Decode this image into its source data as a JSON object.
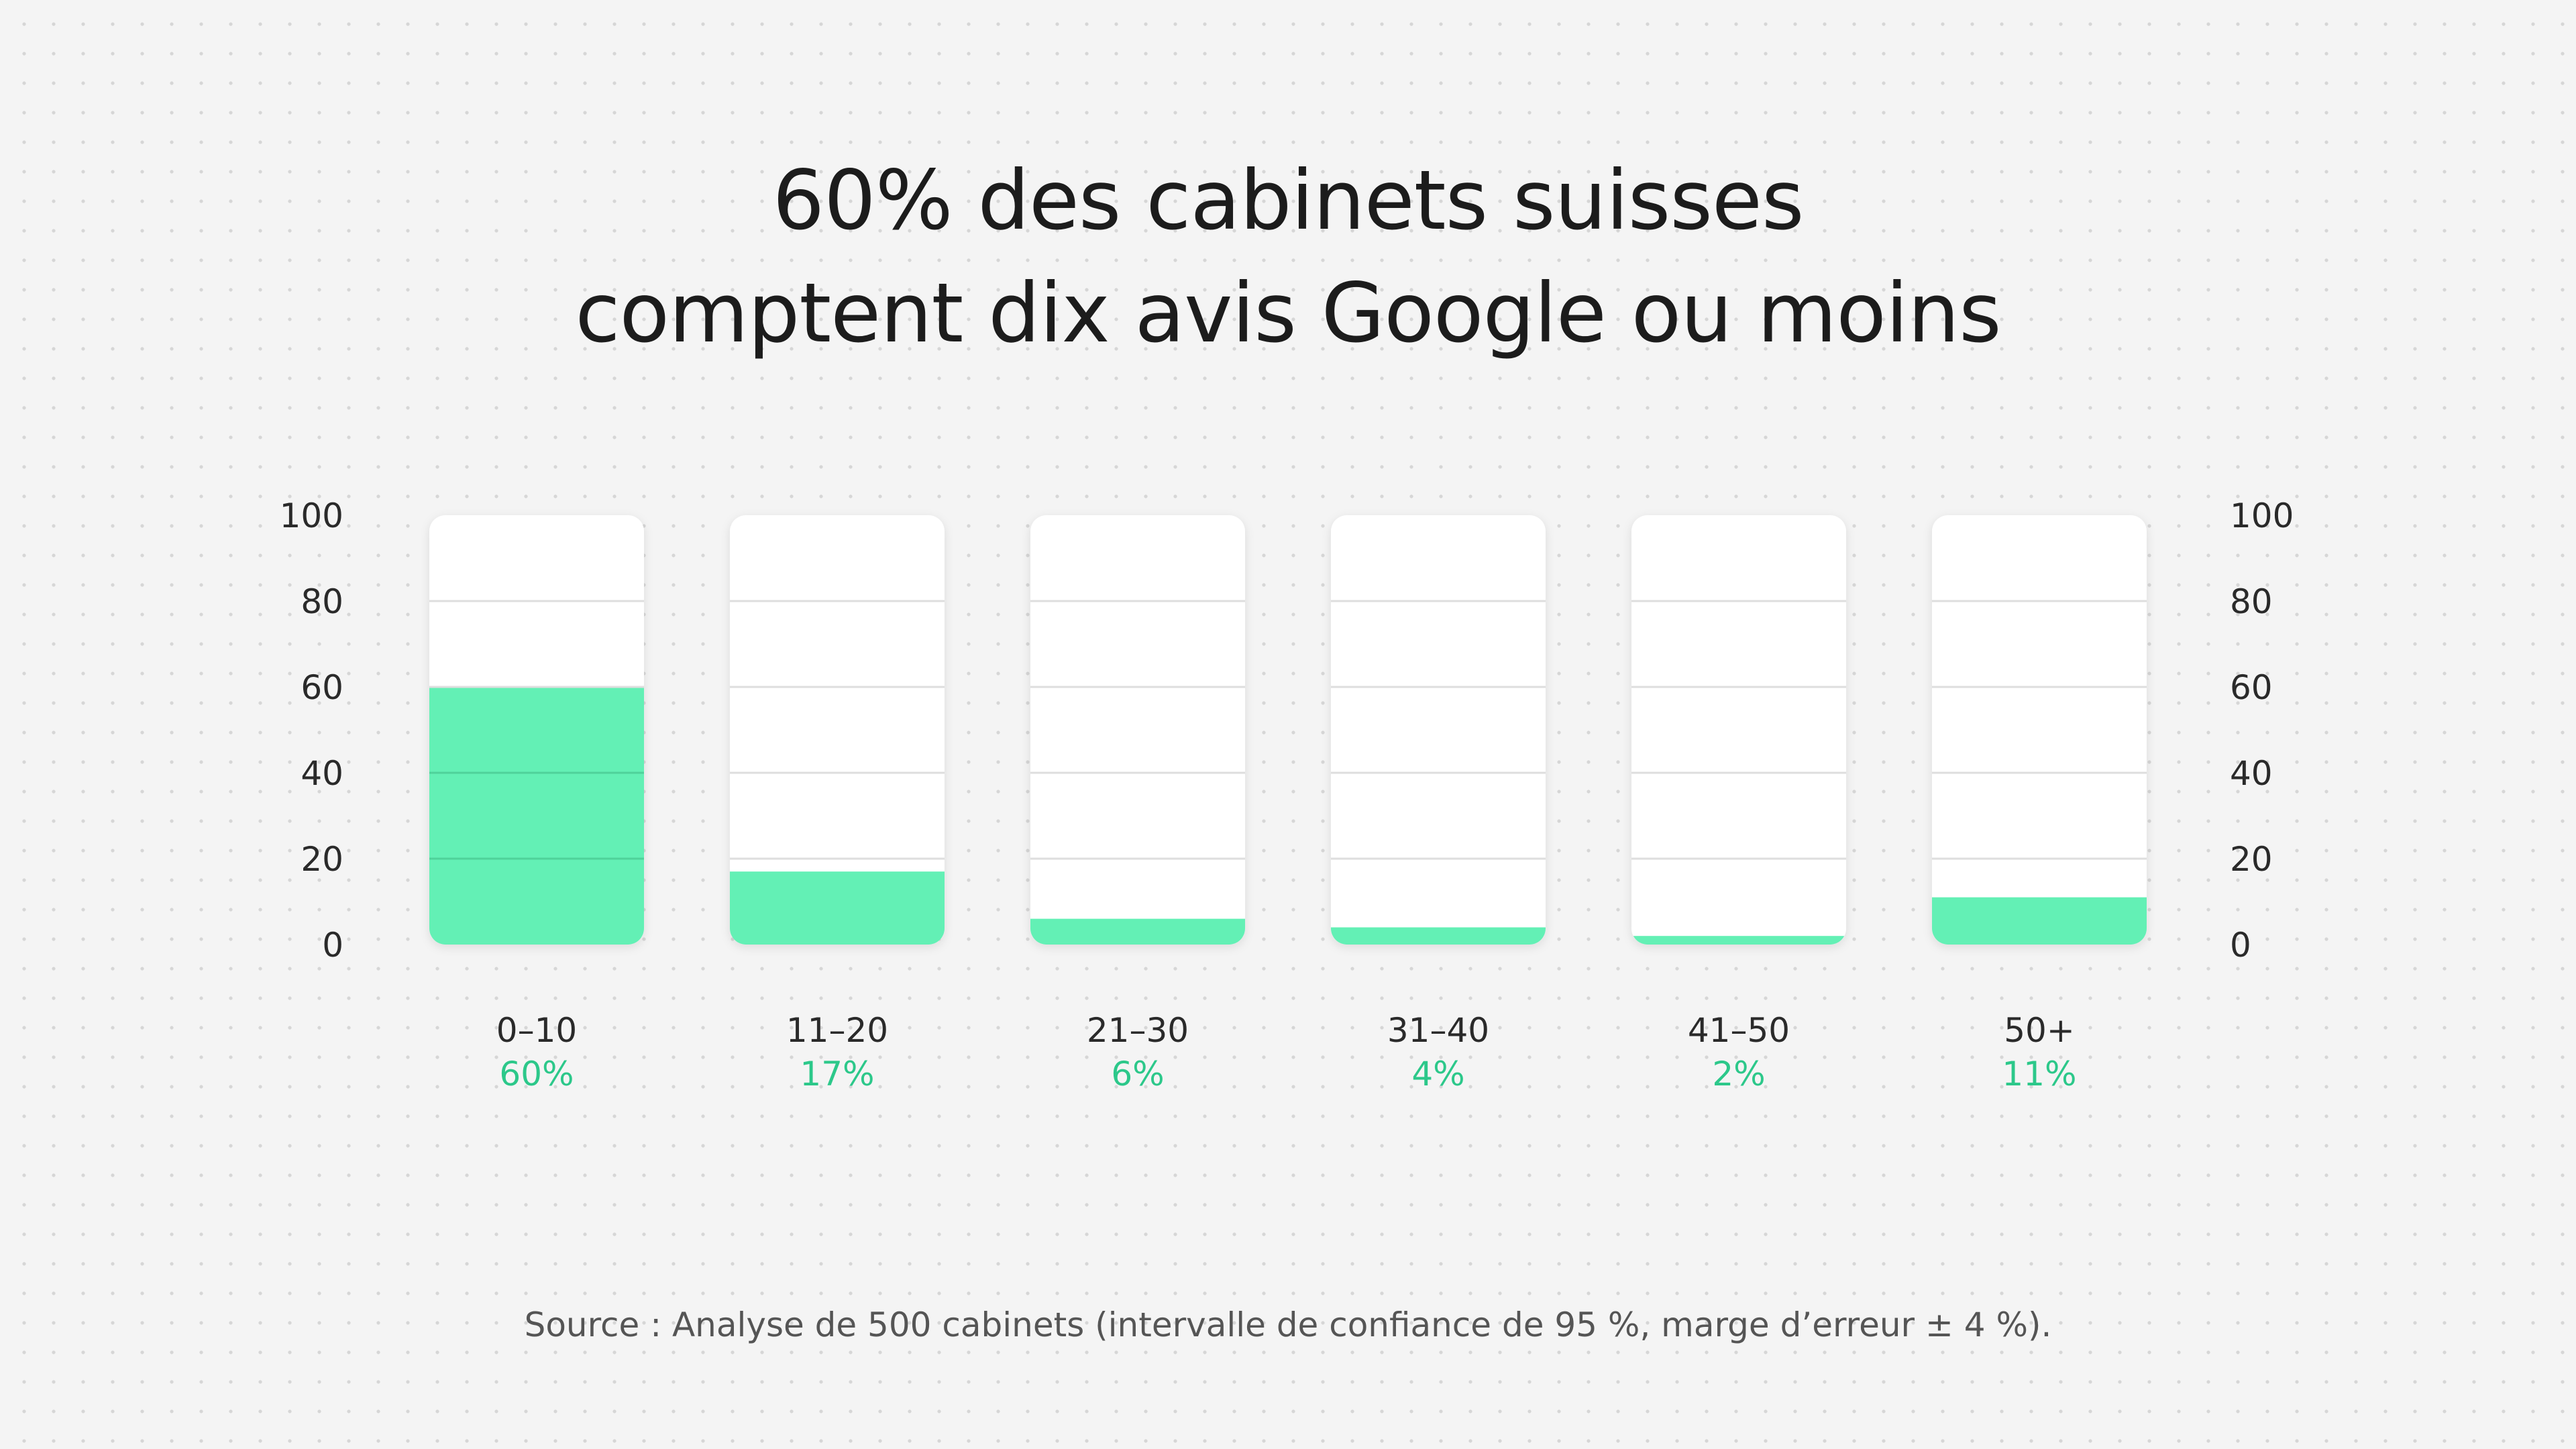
{
  "header": {
    "title_line1": "60% des cabinets suisses",
    "title_line2": "comptent dix avis Google ou moins"
  },
  "footer": {
    "source": "Source : Analyse de 500 cabinets (intervalle de confiance de 95 %, marge d’erreur ± 4 %)."
  },
  "colors": {
    "fill": "#63f0b5",
    "value_label": "#2cc88a",
    "track": "#ffffff",
    "gridline": "#dedede",
    "fill_gridline": "#4fd29a",
    "axis_text": "#2a2a2a",
    "category_text": "#2a2a2a"
  },
  "chart_data": {
    "type": "bar",
    "categories": [
      "0–10",
      "11–20",
      "21–30",
      "31–40",
      "41–50",
      "50+"
    ],
    "values": [
      60,
      17,
      6,
      4,
      2,
      11
    ],
    "value_labels": [
      "60%",
      "17%",
      "6%",
      "4%",
      "2%",
      "11%"
    ],
    "ylim": [
      0,
      100
    ],
    "yticks": [
      0,
      20,
      40,
      60,
      80,
      100
    ],
    "ytick_labels": [
      "0",
      "20",
      "40",
      "60",
      "80",
      "100"
    ],
    "y_axis_sides": [
      "left",
      "right"
    ],
    "grid": true,
    "title": "60% des cabinets suisses comptent dix avis Google ou moins",
    "xlabel": "",
    "ylabel": ""
  }
}
